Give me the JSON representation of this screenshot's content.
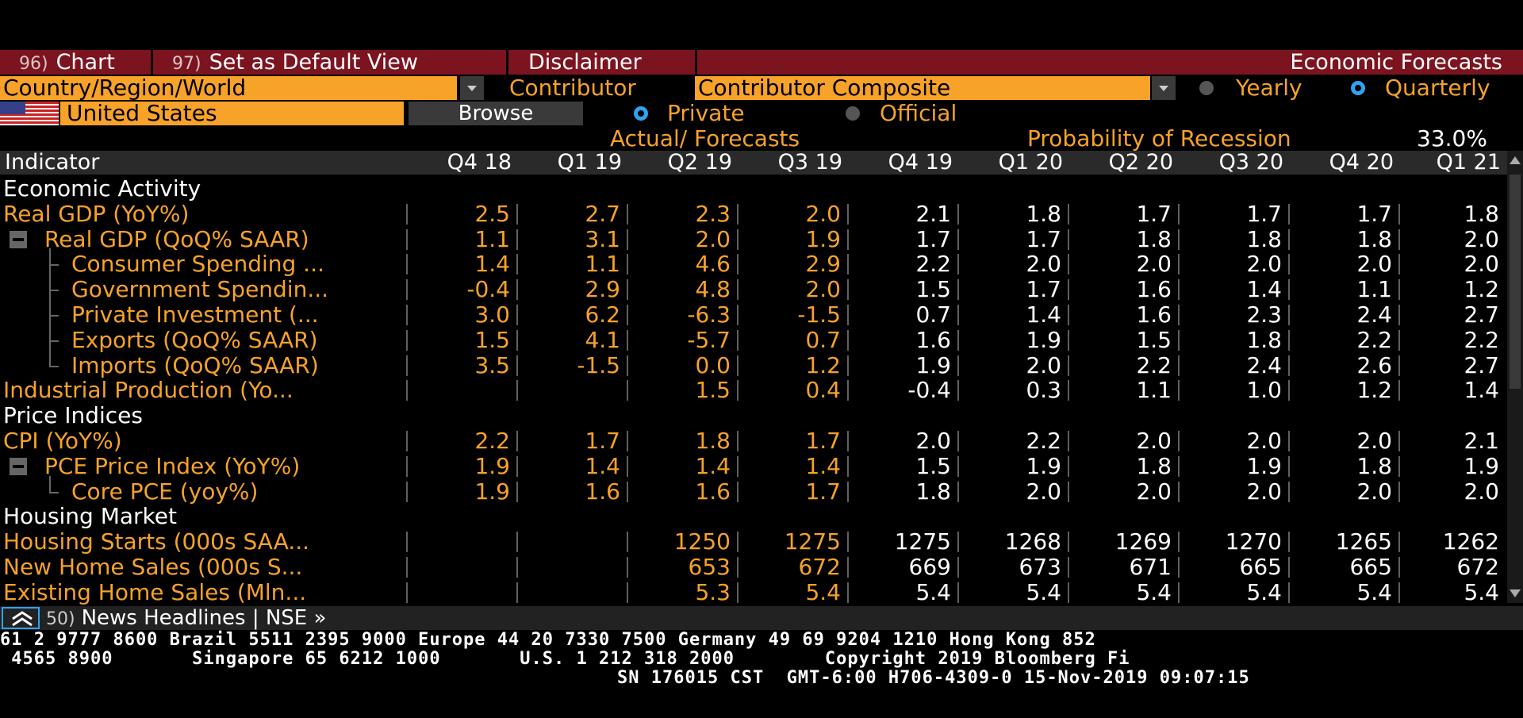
{
  "toolbar": {
    "chart": {
      "num": "96)",
      "label": "Chart"
    },
    "default_view": {
      "num": "97)",
      "label": "Set as Default View"
    },
    "disclaimer": {
      "label": "Disclaimer"
    },
    "title": "Economic Forecasts"
  },
  "filters": {
    "region_value": "Country/Region/World",
    "contributor_label": "Contributor",
    "contributor_value": "Contributor Composite",
    "yearly_label": "Yearly",
    "quarterly_label": "Quarterly",
    "period_selected": "Quarterly",
    "country_value": "United States",
    "browse_label": "Browse",
    "private_label": "Private",
    "official_label": "Official",
    "source_selected": "Private"
  },
  "summary": {
    "actual_forecasts": "Actual/ Forecasts",
    "recession_label": "Probability of Recession",
    "recession_value": "33.0%"
  },
  "table": {
    "indicator_header": "Indicator",
    "columns": [
      "Q4 18",
      "Q1 19",
      "Q2 19",
      "Q3 19",
      "Q4 19",
      "Q1 20",
      "Q2 20",
      "Q3 20",
      "Q4 20",
      "Q1 21"
    ],
    "rows": [
      {
        "label": "Economic Activity",
        "type": "section",
        "values": []
      },
      {
        "label": "Real GDP (YoY%)",
        "type": "ind",
        "values": [
          "2.5",
          "2.7",
          "2.3",
          "2.0",
          "2.1",
          "1.8",
          "1.7",
          "1.7",
          "1.7",
          "1.8"
        ]
      },
      {
        "label": "Real GDP (QoQ% SAAR)",
        "type": "parent",
        "values": [
          "1.1",
          "3.1",
          "2.0",
          "1.9",
          "1.7",
          "1.7",
          "1.8",
          "1.8",
          "1.8",
          "2.0"
        ]
      },
      {
        "label": "Consumer Spending ...",
        "type": "child",
        "values": [
          "1.4",
          "1.1",
          "4.6",
          "2.9",
          "2.2",
          "2.0",
          "2.0",
          "2.0",
          "2.0",
          "2.0"
        ]
      },
      {
        "label": "Government Spendin...",
        "type": "child",
        "values": [
          "-0.4",
          "2.9",
          "4.8",
          "2.0",
          "1.5",
          "1.7",
          "1.6",
          "1.4",
          "1.1",
          "1.2"
        ]
      },
      {
        "label": "Private Investment (...",
        "type": "child",
        "values": [
          "3.0",
          "6.2",
          "-6.3",
          "-1.5",
          "0.7",
          "1.4",
          "1.6",
          "2.3",
          "2.4",
          "2.7"
        ]
      },
      {
        "label": "Exports (QoQ% SAAR)",
        "type": "child",
        "values": [
          "1.5",
          "4.1",
          "-5.7",
          "0.7",
          "1.6",
          "1.9",
          "1.5",
          "1.8",
          "2.2",
          "2.2"
        ]
      },
      {
        "label": "Imports (QoQ% SAAR)",
        "type": "child-last",
        "values": [
          "3.5",
          "-1.5",
          "0.0",
          "1.2",
          "1.9",
          "2.0",
          "2.2",
          "2.4",
          "2.6",
          "2.7"
        ]
      },
      {
        "label": "Industrial Production (Yo...",
        "type": "ind",
        "values": [
          "",
          "",
          "1.5",
          "0.4",
          "-0.4",
          "0.3",
          "1.1",
          "1.0",
          "1.2",
          "1.4"
        ]
      },
      {
        "label": "Price Indices",
        "type": "section",
        "values": []
      },
      {
        "label": "CPI (YoY%)",
        "type": "ind",
        "values": [
          "2.2",
          "1.7",
          "1.8",
          "1.7",
          "2.0",
          "2.2",
          "2.0",
          "2.0",
          "2.0",
          "2.1"
        ]
      },
      {
        "label": "PCE Price Index (YoY%)",
        "type": "parent",
        "values": [
          "1.9",
          "1.4",
          "1.4",
          "1.4",
          "1.5",
          "1.9",
          "1.8",
          "1.9",
          "1.8",
          "1.9"
        ]
      },
      {
        "label": "Core PCE (yoy%)",
        "type": "child-last",
        "values": [
          "1.9",
          "1.6",
          "1.6",
          "1.7",
          "1.8",
          "2.0",
          "2.0",
          "2.0",
          "2.0",
          "2.0"
        ]
      },
      {
        "label": "Housing Market",
        "type": "section",
        "values": []
      },
      {
        "label": "Housing Starts (000s SAA...",
        "type": "ind",
        "values": [
          "",
          "",
          "1250",
          "1275",
          "1275",
          "1268",
          "1269",
          "1270",
          "1265",
          "1262"
        ]
      },
      {
        "label": "New Home Sales (000s S...",
        "type": "ind",
        "values": [
          "",
          "",
          "653",
          "672",
          "669",
          "673",
          "671",
          "665",
          "665",
          "672"
        ]
      },
      {
        "label": "Existing Home Sales (Mln...",
        "type": "ind",
        "values": [
          "",
          "",
          "5.3",
          "5.4",
          "5.4",
          "5.4",
          "5.4",
          "5.4",
          "5.4",
          "5.4"
        ]
      }
    ]
  },
  "news": {
    "num": "50)",
    "label": "News Headlines | NSE »"
  },
  "footer": {
    "line1": "61 2 9777 8600 Brazil 5511 2395 9000 Europe 44 20 7330 7500 Germany 49 69 9204 1210 Hong Kong 852",
    "line2": " 4565 8900       Singapore 65 6212 1000       U.S. 1 212 318 2000        Copyright 2019 Bloomberg Fi",
    "line3": "SN 176015 CST  GMT-6:00 H706-4309-0 15-Nov-2019 09:07:15"
  },
  "colors": {
    "accent_orange": "#f7a228",
    "toolbar_red": "#7c1420",
    "radio_blue": "#2ea3f2"
  },
  "icons": [
    "us-flag-icon",
    "dropdown-arrow-icon",
    "collapse-minus-icon",
    "collapse-chevrons-icon"
  ]
}
